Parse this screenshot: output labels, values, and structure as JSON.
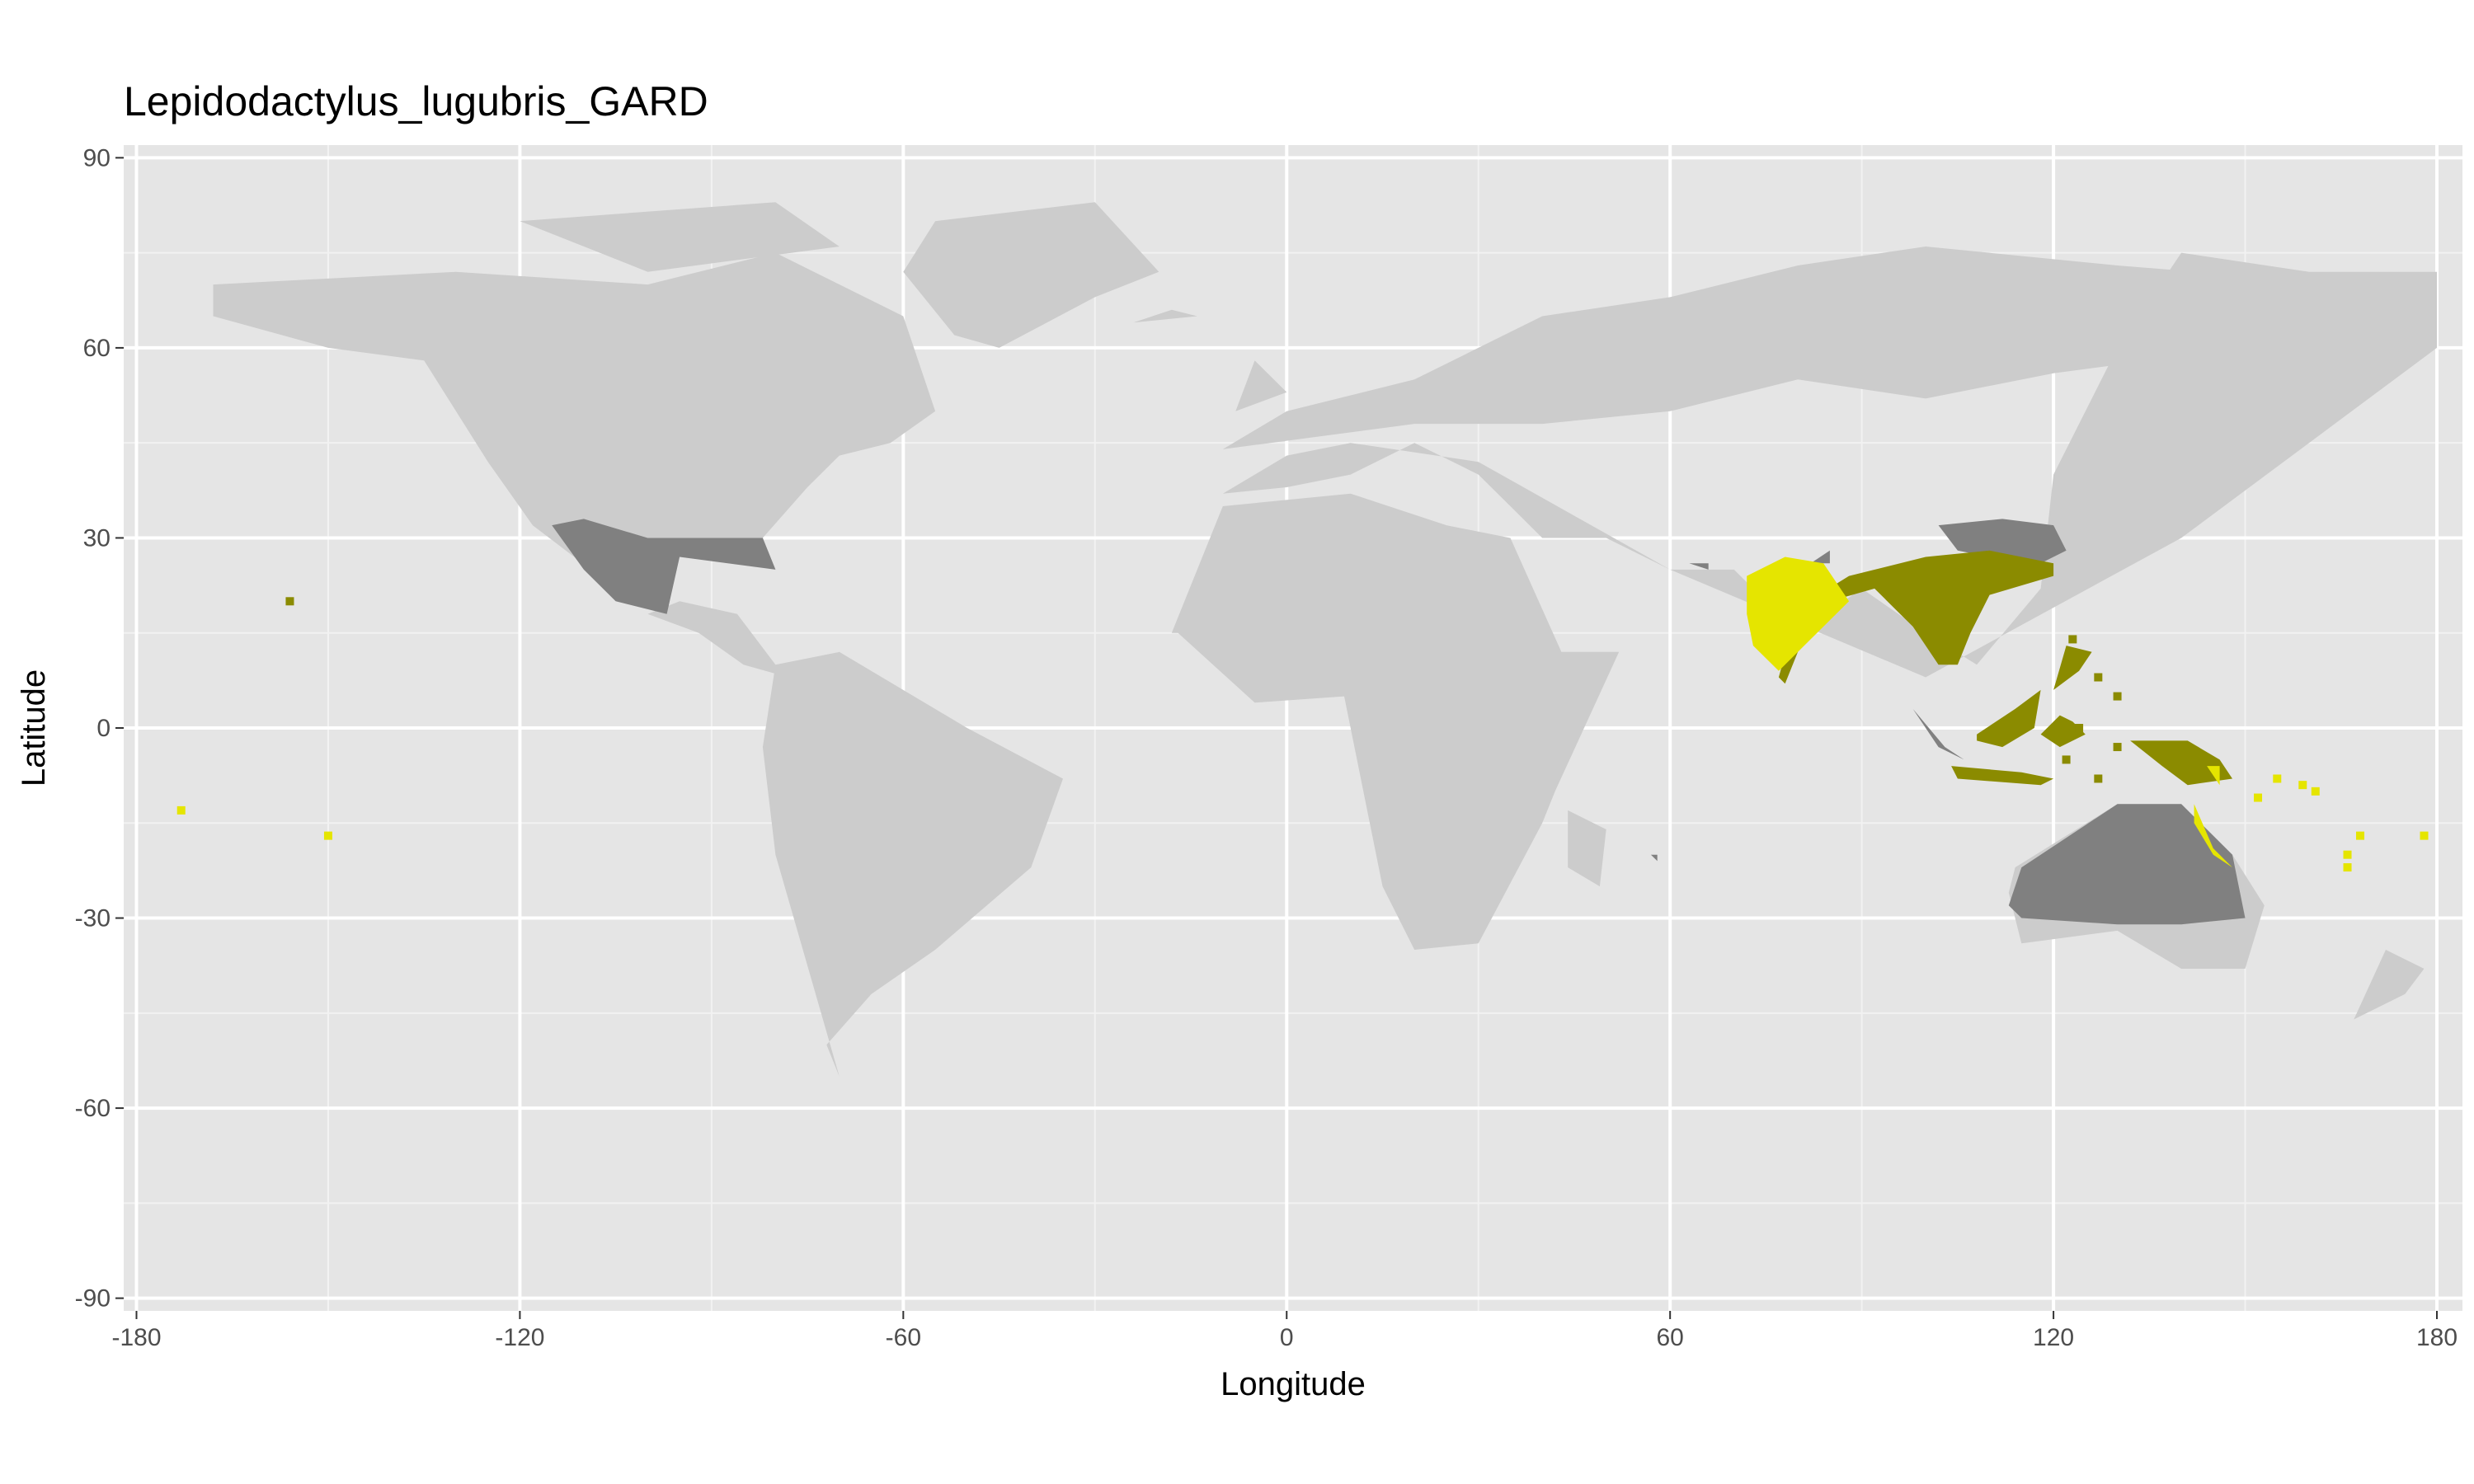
{
  "chart_data": {
    "type": "heatmap",
    "title": "Lepidodactylus_lugubris_GARD",
    "xlabel": "Longitude",
    "ylabel": "Latitude",
    "xlim": [
      -182,
      184
    ],
    "ylim": [
      -92,
      92
    ],
    "x_ticks": [
      -180,
      -120,
      -60,
      0,
      60,
      120,
      180
    ],
    "y_ticks": [
      -90,
      -60,
      -30,
      0,
      30,
      60,
      90
    ],
    "grid": true,
    "legend": "none",
    "colors": {
      "panel": "#e5e5e5",
      "gridline": "#ffffff",
      "land": "#cccccc",
      "dark_gray": "#808080",
      "olive": "#8b8b00",
      "yellow": "#e5e500"
    },
    "land": [
      {
        "lon": [
          -168,
          -130,
          -100,
          -80,
          -60,
          -55,
          -62,
          -70,
          -75,
          -82,
          -80,
          -95,
          -105,
          -118,
          -125,
          -135,
          -150,
          -168
        ],
        "lat": [
          70,
          72,
          70,
          75,
          65,
          50,
          45,
          43,
          38,
          30,
          25,
          28,
          22,
          32,
          42,
          58,
          60,
          65
        ]
      },
      {
        "lon": [
          -95,
          -86,
          -80,
          -78,
          -85,
          -92,
          -100
        ],
        "lat": [
          20,
          18,
          10,
          8,
          10,
          15,
          18
        ]
      },
      {
        "lon": [
          -120,
          -80,
          -70,
          -100
        ],
        "lat": [
          80,
          83,
          76,
          72
        ]
      },
      {
        "lon": [
          -55,
          -30,
          -20,
          -30,
          -45,
          -52,
          -60
        ],
        "lat": [
          80,
          83,
          72,
          68,
          60,
          62,
          72
        ]
      },
      {
        "lon": [
          -80,
          -70,
          -50,
          -35,
          -40,
          -55,
          -65,
          -72,
          -70,
          -80,
          -82
        ],
        "lat": [
          10,
          12,
          0,
          -8,
          -22,
          -35,
          -42,
          -50,
          -55,
          -20,
          -3
        ]
      },
      {
        "lon": [
          -18,
          -10,
          10,
          25,
          35,
          43,
          52,
          42,
          40,
          30,
          20,
          15,
          9,
          -5,
          -17
        ],
        "lat": [
          15,
          35,
          37,
          32,
          30,
          12,
          12,
          -10,
          -15,
          -34,
          -35,
          -25,
          5,
          4,
          15
        ]
      },
      {
        "lon": [
          44,
          50,
          49,
          44
        ],
        "lat": [
          -13,
          -16,
          -25,
          -22
        ]
      },
      {
        "lon": [
          -10,
          0,
          10,
          30,
          60,
          100,
          140,
          180,
          180,
          160,
          140,
          130,
          120,
          118,
          108,
          100,
          90,
          80,
          70,
          60,
          50,
          40,
          35,
          30,
          20,
          10,
          0,
          -10
        ],
        "lat": [
          37,
          43,
          45,
          42,
          25,
          8,
          30,
          60,
          72,
          72,
          75,
          60,
          40,
          22,
          10,
          15,
          22,
          15,
          25,
          25,
          30,
          30,
          35,
          40,
          45,
          40,
          38,
          37
        ]
      },
      {
        "lon": [
          -10,
          0,
          20,
          40,
          60,
          80,
          100,
          130,
          180,
          180,
          150,
          120,
          100,
          80,
          60,
          40,
          20,
          5,
          -10
        ],
        "lat": [
          44,
          50,
          55,
          65,
          68,
          73,
          76,
          73,
          69,
          62,
          60,
          56,
          52,
          55,
          50,
          48,
          48,
          46,
          44
        ]
      },
      {
        "lon": [
          -8,
          0,
          -5
        ],
        "lat": [
          50,
          53,
          58
        ]
      },
      {
        "lon": [
          -24,
          -14,
          -18
        ],
        "lat": [
          64,
          65,
          66
        ]
      },
      {
        "lon": [
          114,
          130,
          140,
          148,
          153,
          150,
          140,
          130,
          115,
          113
        ],
        "lat": [
          -22,
          -12,
          -12,
          -20,
          -28,
          -38,
          -38,
          -32,
          -34,
          -26
        ]
      },
      {
        "lon": [
          172,
          178,
          175,
          167
        ],
        "lat": [
          -35,
          -38,
          -42,
          -46
        ]
      },
      {
        "lon": [
          130,
          140,
          145,
          135
        ],
        "lat": [
          33,
          36,
          43,
          35
        ]
      }
    ],
    "dark_gray": [
      {
        "lon": [
          -115,
          -110,
          -100,
          -82,
          -80,
          -95,
          -97,
          -105,
          -110
        ],
        "lat": [
          32,
          33,
          30,
          30,
          25,
          27,
          18,
          20,
          25
        ]
      },
      {
        "lon": [
          102,
          112,
          120,
          122,
          118,
          110,
          105
        ],
        "lat": [
          32,
          33,
          32,
          28,
          26,
          27,
          28
        ]
      },
      {
        "lon": [
          115,
          130,
          140,
          148,
          150,
          140,
          130,
          115,
          113
        ],
        "lat": [
          -22,
          -12,
          -12,
          -20,
          -30,
          -31,
          -31,
          -30,
          -28
        ]
      },
      {
        "lon": [
          98,
          103,
          106,
          102
        ],
        "lat": [
          3,
          -3,
          -5,
          -3
        ]
      },
      {
        "lon": [
          82,
          85,
          85
        ],
        "lat": [
          26,
          28,
          26
        ]
      },
      {
        "lon": [
          63,
          66,
          66
        ],
        "lat": [
          26,
          26,
          25
        ]
      },
      {
        "lon": [
          57,
          58,
          58
        ],
        "lat": [
          -20,
          -20,
          -21
        ]
      }
    ],
    "olive": [
      {
        "lon": [
          88,
          100,
          110,
          120,
          120,
          110,
          107,
          105,
          102,
          100,
          98,
          92,
          85,
          80,
          78,
          77,
          80
        ],
        "lat": [
          24,
          27,
          28,
          26,
          24,
          21,
          15,
          10,
          10,
          13,
          16,
          22,
          20,
          12,
          7,
          8,
          19
        ]
      },
      {
        "lon": [
          108,
          114,
          118,
          117,
          112,
          108
        ],
        "lat": [
          -1,
          3,
          6,
          0,
          -3,
          -2
        ]
      },
      {
        "lon": [
          104,
          115,
          120,
          118,
          105
        ],
        "lat": [
          -6,
          -7,
          -8,
          -9,
          -8
        ]
      },
      {
        "lon": [
          132,
          141,
          146,
          148,
          141,
          137
        ],
        "lat": [
          -2,
          -2,
          -5,
          -8,
          -9,
          -6
        ]
      },
      {
        "lon": [
          118,
          121,
          123,
          125,
          121
        ],
        "lat": [
          -1,
          2,
          1,
          -1,
          -3
        ]
      },
      {
        "lon": [
          120,
          124,
          126,
          122
        ],
        "lat": [
          6,
          9,
          12,
          13
        ]
      }
    ],
    "yellow": [
      {
        "lon": [
          72,
          78,
          84,
          88,
          82,
          77,
          73,
          72
        ],
        "lat": [
          24,
          27,
          26,
          20,
          14,
          9,
          13,
          18
        ]
      },
      {
        "lon": [
          142,
          145,
          148,
          145,
          142
        ],
        "lat": [
          -12,
          -19,
          -22,
          -20,
          -15
        ]
      },
      {
        "lon": [
          144,
          146,
          146
        ],
        "lat": [
          -6,
          -6,
          -9
        ]
      }
    ],
    "points": [
      {
        "lon": -156,
        "lat": 20,
        "cls": "olive"
      },
      {
        "lon": -173,
        "lat": -13,
        "cls": "yellow"
      },
      {
        "lon": -150,
        "lat": -17,
        "cls": "yellow"
      },
      {
        "lon": 152,
        "lat": -11,
        "cls": "yellow"
      },
      {
        "lon": 155,
        "lat": -8,
        "cls": "yellow"
      },
      {
        "lon": 159,
        "lat": -9,
        "cls": "yellow"
      },
      {
        "lon": 161,
        "lat": -10,
        "cls": "yellow"
      },
      {
        "lon": 166,
        "lat": -20,
        "cls": "yellow"
      },
      {
        "lon": 168,
        "lat": -17,
        "cls": "yellow"
      },
      {
        "lon": 178,
        "lat": -17,
        "cls": "yellow"
      },
      {
        "lon": 166,
        "lat": -22,
        "cls": "yellow"
      },
      {
        "lon": 123,
        "lat": 14,
        "cls": "olive"
      },
      {
        "lon": 127,
        "lat": 8,
        "cls": "olive"
      },
      {
        "lon": 130,
        "lat": 5,
        "cls": "olive"
      },
      {
        "lon": 124,
        "lat": 0,
        "cls": "olive"
      },
      {
        "lon": 130,
        "lat": -3,
        "cls": "olive"
      },
      {
        "lon": 122,
        "lat": -5,
        "cls": "olive"
      },
      {
        "lon": 127,
        "lat": -8,
        "cls": "olive"
      }
    ]
  }
}
